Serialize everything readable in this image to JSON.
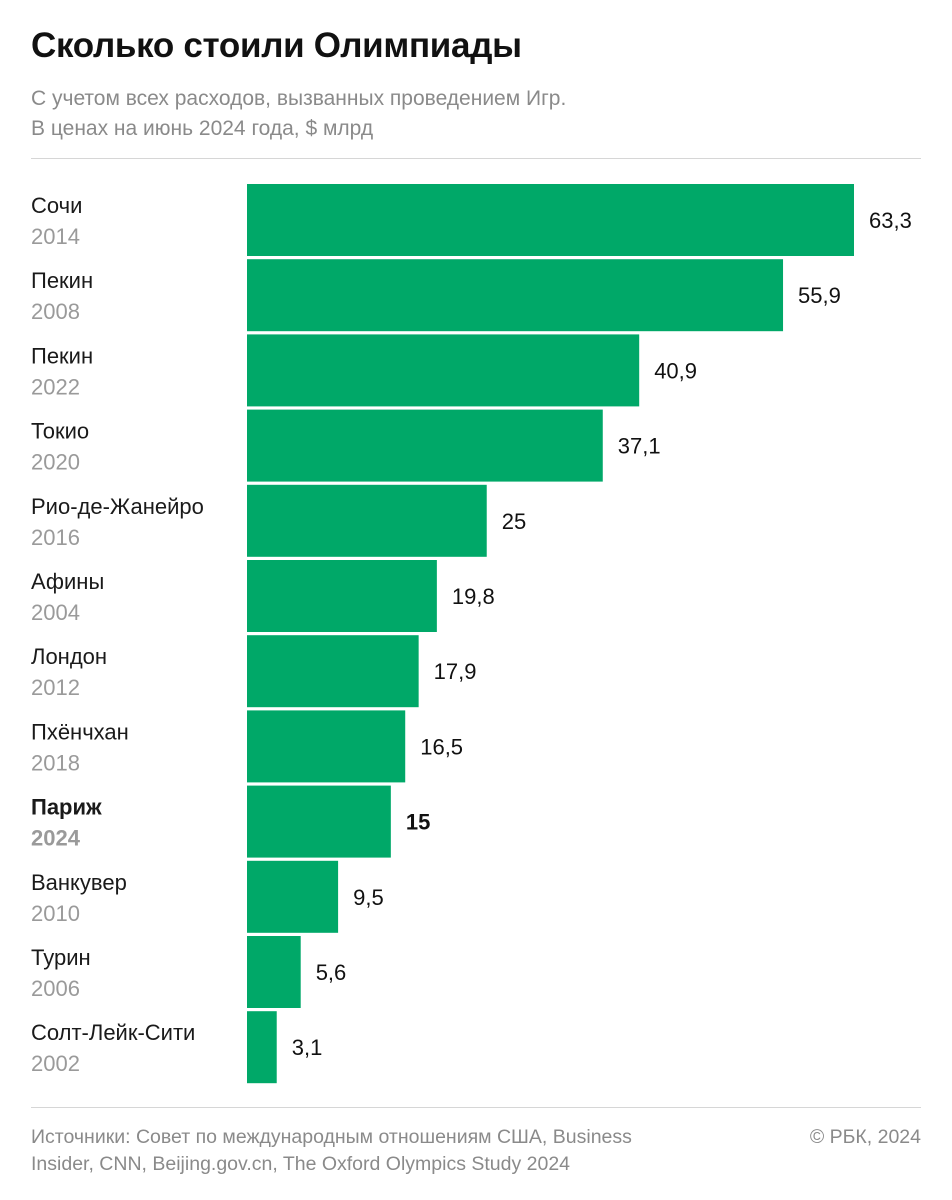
{
  "chart_data": {
    "type": "bar",
    "orientation": "horizontal",
    "title": "Сколько стоили Олимпиады",
    "subtitle_lines": [
      "С учетом всех расходов, вызванных проведением Игр.",
      "В ценах на июнь 2024 года, $ млрд"
    ],
    "categories": [
      {
        "city": "Сочи",
        "year": "2014",
        "value": 63.3,
        "label": "63,3"
      },
      {
        "city": "Пекин",
        "year": "2008",
        "value": 55.9,
        "label": "55,9"
      },
      {
        "city": "Пекин",
        "year": "2022",
        "value": 40.9,
        "label": "40,9"
      },
      {
        "city": "Токио",
        "year": "2020",
        "value": 37.1,
        "label": "37,1"
      },
      {
        "city": "Рио-де-Жанейро",
        "year": "2016",
        "value": 25,
        "label": "25"
      },
      {
        "city": "Афины",
        "year": "2004",
        "value": 19.8,
        "label": "19,8"
      },
      {
        "city": "Лондон",
        "year": "2012",
        "value": 17.9,
        "label": "17,9"
      },
      {
        "city": "Пхёнчхан",
        "year": "2018",
        "value": 16.5,
        "label": "16,5"
      },
      {
        "city": "Париж",
        "year": "2024",
        "value": 15,
        "label": "15",
        "highlight": true
      },
      {
        "city": "Ванкувер",
        "year": "2010",
        "value": 9.5,
        "label": "9,5"
      },
      {
        "city": "Турин",
        "year": "2006",
        "value": 5.6,
        "label": "5,6"
      },
      {
        "city": "Солт-Лейк-Сити",
        "year": "2002",
        "value": 3.1,
        "label": "3,1"
      }
    ],
    "xlim": [
      0,
      63.3
    ],
    "grid": false,
    "bar_color": "#00a868"
  },
  "footer": {
    "source_lines": [
      "Источники: Совет по международным отношениям США,  Business",
      "Insider, CNN, Beijing.gov.cn, The Oxford Olympics Study 2024"
    ],
    "copyright": "© РБК, 2024"
  }
}
